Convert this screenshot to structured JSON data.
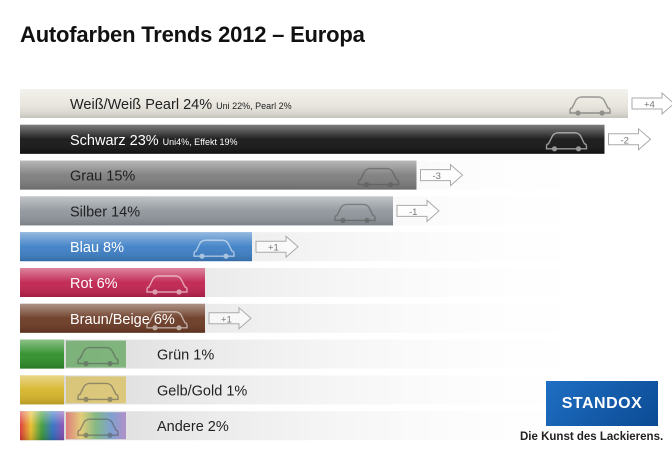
{
  "title": "Autofarben Trends 2012 – Europa",
  "brand": {
    "name": "STANDOX",
    "tagline": "Die Kunst des Lackierens."
  },
  "chart_data": {
    "type": "bar",
    "orientation": "horizontal",
    "title": "Autofarben Trends 2012 – Europa",
    "unit": "%",
    "xlim": [
      0,
      30
    ],
    "categories": [
      "Weiß/Weiß Pearl",
      "Schwarz",
      "Grau",
      "Silber",
      "Blau",
      "Rot",
      "Braun/Beige",
      "Grün",
      "Gelb/Gold",
      "Andere"
    ],
    "values": [
      24,
      23,
      15,
      14,
      8,
      6,
      6,
      1,
      1,
      2
    ],
    "labels": [
      {
        "main": "Weiß/Weiß Pearl 24%",
        "detail": "Uni 22%, Pearl 2%"
      },
      {
        "main": "Schwarz 23%",
        "detail": "Uni4%, Effekt 19%"
      },
      {
        "main": "Grau 15%",
        "detail": ""
      },
      {
        "main": "Silber 14%",
        "detail": ""
      },
      {
        "main": "Blau 8%",
        "detail": ""
      },
      {
        "main": "Rot 6%",
        "detail": ""
      },
      {
        "main": "Braun/Beige 6%",
        "detail": ""
      },
      {
        "main": "Grün 1%",
        "detail": ""
      },
      {
        "main": "Gelb/Gold 1%",
        "detail": ""
      },
      {
        "main": "Andere 2%",
        "detail": ""
      }
    ],
    "changes": [
      "+4",
      "-2",
      "-3",
      "-1",
      "+1",
      "",
      "+1",
      "",
      "",
      ""
    ],
    "colors": [
      "#e8e6dd",
      "#141414",
      "#7d7d7d",
      "#8f969c",
      "#3d7fc6",
      "#c0224f",
      "#6b3a24",
      "#2f8f2a",
      "#d7b52a",
      "#6f5aa8"
    ],
    "label_light": [
      false,
      true,
      false,
      false,
      true,
      true,
      true,
      false,
      false,
      false
    ],
    "icons": [
      "car-icon",
      "arrow-icon"
    ]
  }
}
